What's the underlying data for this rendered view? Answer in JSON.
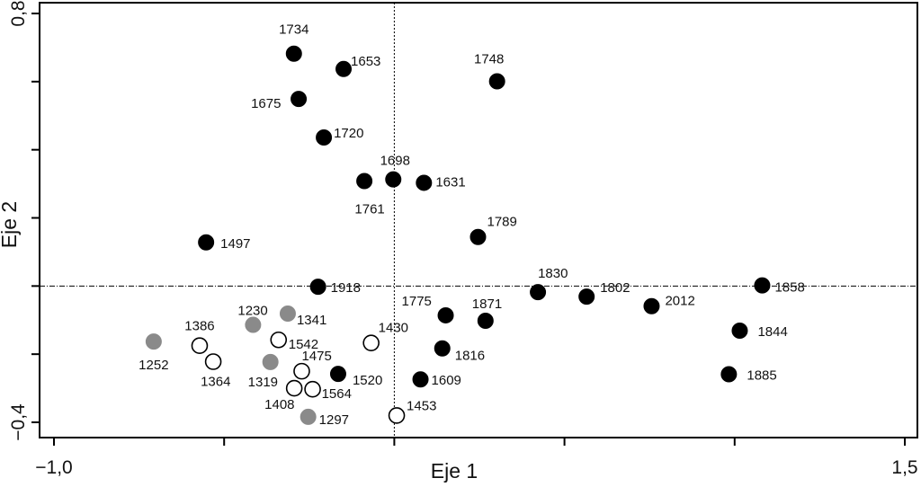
{
  "chart_data": {
    "type": "scatter",
    "xlabel": "Eje 1",
    "ylabel": "Eje 2",
    "xlim": [
      -1.0,
      1.5
    ],
    "ylim": [
      -0.4,
      0.8
    ],
    "xticks": [
      -1.0,
      -0.5,
      0.0,
      0.5,
      1.0,
      1.5
    ],
    "yticks": [
      -0.4,
      -0.2,
      0.0,
      0.2,
      0.4,
      0.6,
      0.8
    ],
    "x_tick_labels": [
      "−1,0",
      "",
      "",
      "",
      "",
      "1,5"
    ],
    "y_tick_labels": [
      "−0,4",
      "",
      "",
      "",
      "",
      "",
      "0,8"
    ],
    "reference_lines": {
      "x": 0.0,
      "y": 0.0
    },
    "grid": false,
    "colors": {
      "filled": "#000000",
      "gray": "#8a8a8a",
      "open": "#ffffff",
      "axis": "#000000"
    },
    "series": [
      {
        "style": "filled",
        "points": [
          {
            "label": "1734",
            "x": -0.295,
            "y": 0.682
          },
          {
            "label": "1653",
            "x": -0.149,
            "y": 0.637
          },
          {
            "label": "1748",
            "x": 0.302,
            "y": 0.601
          },
          {
            "label": "1675",
            "x": -0.281,
            "y": 0.549
          },
          {
            "label": "1720",
            "x": -0.207,
            "y": 0.436
          },
          {
            "label": "1698",
            "x": -0.003,
            "y": 0.313
          },
          {
            "label": "1761",
            "x": -0.088,
            "y": 0.308
          },
          {
            "label": "1631",
            "x": 0.087,
            "y": 0.303
          },
          {
            "label": "1789",
            "x": 0.246,
            "y": 0.144
          },
          {
            "label": "1497",
            "x": -0.553,
            "y": 0.128
          },
          {
            "label": "1918",
            "x": -0.224,
            "y": -0.002
          },
          {
            "label": "1830",
            "x": 0.422,
            "y": -0.018
          },
          {
            "label": "1802",
            "x": 0.565,
            "y": -0.031
          },
          {
            "label": "2012",
            "x": 0.756,
            "y": -0.059
          },
          {
            "label": "1858",
            "x": 1.081,
            "y": 0.002
          },
          {
            "label": "1775",
            "x": 0.151,
            "y": -0.086
          },
          {
            "label": "1871",
            "x": 0.268,
            "y": -0.102
          },
          {
            "label": "1844",
            "x": 1.015,
            "y": -0.131
          },
          {
            "label": "1816",
            "x": 0.141,
            "y": -0.183
          },
          {
            "label": "1520",
            "x": -0.165,
            "y": -0.258
          },
          {
            "label": "1609",
            "x": 0.077,
            "y": -0.274
          },
          {
            "label": "1885",
            "x": 0.983,
            "y": -0.259
          }
        ]
      },
      {
        "style": "gray",
        "points": [
          {
            "label": "1341",
            "x": -0.313,
            "y": -0.081
          },
          {
            "label": "1230",
            "x": -0.415,
            "y": -0.114
          },
          {
            "label": "1252",
            "x": -0.707,
            "y": -0.163
          },
          {
            "label": "1319",
            "x": -0.364,
            "y": -0.223
          },
          {
            "label": "1297",
            "x": -0.253,
            "y": -0.384
          }
        ]
      },
      {
        "style": "open",
        "points": [
          {
            "label": "1542",
            "x": -0.34,
            "y": -0.158
          },
          {
            "label": "1430",
            "x": -0.068,
            "y": -0.167
          },
          {
            "label": "1386",
            "x": -0.572,
            "y": -0.175
          },
          {
            "label": "1364",
            "x": -0.532,
            "y": -0.222
          },
          {
            "label": "1475",
            "x": -0.272,
            "y": -0.25
          },
          {
            "label": "1408",
            "x": -0.294,
            "y": -0.3
          },
          {
            "label": "1564",
            "x": -0.24,
            "y": -0.303
          },
          {
            "label": "1453",
            "x": 0.007,
            "y": -0.38
          }
        ]
      }
    ]
  }
}
